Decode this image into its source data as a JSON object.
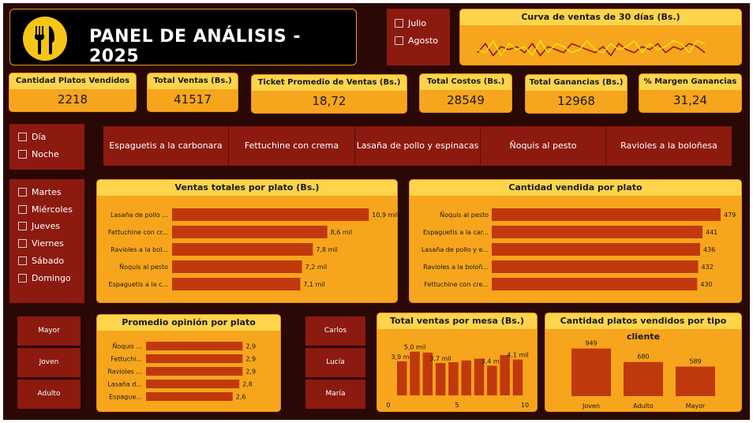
{
  "header": {
    "title": "PANEL DE ANÁLISIS - 2025"
  },
  "month_slicer": {
    "options": [
      "Julio",
      "Agosto"
    ]
  },
  "sales_curve": {
    "title": "Curva de ventas de 30 días (Bs.)",
    "colors": {
      "series_a": "#8c1a0f",
      "series_b": "#f5e216"
    }
  },
  "kpis": [
    {
      "label": "Cantidad Platos Vendidos",
      "value": "2218"
    },
    {
      "label": "Total Ventas (Bs.)",
      "value": "41517"
    },
    {
      "label": "Ticket Promedio de Ventas (Bs.)",
      "value": "18,72"
    },
    {
      "label": "Total Costos (Bs.)",
      "value": "28549"
    },
    {
      "label": "Total Ganancias (Bs.)",
      "value": "12968"
    },
    {
      "label": "% Margen Ganancias",
      "value": "31,24"
    }
  ],
  "shift_slicer": {
    "options": [
      "Día",
      "Noche"
    ]
  },
  "dish_filter": {
    "items": [
      "Espaguetis a la carbonara",
      "Fettuchine con crema",
      "Lasaña de pollo y espinacas",
      "Ñoquis al pesto",
      "Ravioles a la boloñesa"
    ]
  },
  "day_slicer": {
    "options": [
      "Martes",
      "Miércoles",
      "Jueves",
      "Viernes",
      "Sábado",
      "Domingo"
    ]
  },
  "age_buttons": [
    "Mayor",
    "Joven",
    "Adulto"
  ],
  "waiter_buttons": [
    "Carlos",
    "Lucía",
    "María"
  ],
  "colors": {
    "bar": "#c0390c",
    "panel": "#f7a51c",
    "header": "#fdd44c",
    "dark": "#8c1a0f",
    "bg": "#2a0805"
  },
  "chart_data": [
    {
      "id": "sales_by_dish",
      "type": "bar",
      "title": "Ventas totales por plato (Bs.)",
      "orientation": "horizontal",
      "categories": [
        "Lasaña de pollo ...",
        "Fettuchine con cr...",
        "Ravioles a la bol...",
        "Ñoquis al pesto",
        "Espaguetis a la c..."
      ],
      "values": [
        10.9,
        8.6,
        7.8,
        7.2,
        7.1
      ],
      "labels": [
        "10,9 mil",
        "8,6 mil",
        "7,8 mil",
        "7,2 mil",
        "7,1 mil"
      ],
      "unit": "mil Bs.",
      "xlim": [
        0,
        11.5
      ]
    },
    {
      "id": "qty_by_dish",
      "type": "bar",
      "title": "Cantidad vendida por plato",
      "orientation": "horizontal",
      "categories": [
        "Ñoquis al pesto",
        "Espaguetis a la car...",
        "Lasaña de pollo y e...",
        "Ravioles a la boloñ...",
        "Fettuchine con cre..."
      ],
      "values": [
        479,
        441,
        436,
        432,
        430
      ],
      "labels": [
        "479",
        "441",
        "436",
        "432",
        "430"
      ],
      "xlim": [
        0,
        479
      ]
    },
    {
      "id": "rating_by_dish",
      "type": "bar",
      "title": "Promedio opinión por plato",
      "orientation": "horizontal",
      "categories": [
        "Ñoquis ...",
        "Fettuchi...",
        "Ravioles ...",
        "Lasaña d...",
        "Espague..."
      ],
      "values": [
        2.9,
        2.9,
        2.9,
        2.8,
        2.6
      ],
      "labels": [
        "2,9",
        "2,9",
        "2,9",
        "2,8",
        "2,6"
      ],
      "xlim": [
        0,
        3.2
      ]
    },
    {
      "id": "sales_by_table",
      "type": "bar",
      "title": "Total ventas por mesa (Bs.)",
      "x": [
        1,
        2,
        3,
        4,
        5,
        6,
        7,
        8,
        9,
        10
      ],
      "values": [
        3.9,
        5.0,
        4.9,
        3.7,
        3.8,
        4.0,
        4.2,
        3.4,
        4.6,
        4.1
      ],
      "labels": [
        "3,9 mil",
        "5,0 mil",
        "",
        "3,7 mil",
        "",
        "",
        "",
        "3,4 mil",
        "",
        "4,1 mil"
      ],
      "xticks": [
        "0",
        "5",
        "10"
      ],
      "ylim": [
        0,
        6.5
      ]
    },
    {
      "id": "qty_by_client",
      "type": "bar",
      "title": "Cantidad platos vendidos por tipo cliente",
      "categories": [
        "Joven",
        "Adulto",
        "Mayor"
      ],
      "values": [
        949,
        680,
        589
      ],
      "labels": [
        "949",
        "680",
        "589"
      ],
      "ylim": [
        0,
        1100
      ]
    },
    {
      "id": "sales_curve_30d",
      "type": "line",
      "title": "Curva de ventas de 30 días (Bs.)",
      "x": [
        1,
        2,
        3,
        4,
        5,
        6,
        7,
        8,
        9,
        10,
        11,
        12,
        13,
        14,
        15,
        16,
        17,
        18,
        19,
        20,
        21,
        22,
        23,
        24,
        25,
        26,
        27,
        28,
        29,
        30
      ],
      "series": [
        {
          "values": [
            1.3,
            1.6,
            1.2,
            1.5,
            1.4,
            1.5,
            1.3,
            1.6,
            1.2,
            1.5,
            1.4,
            1.3,
            1.6,
            1.5,
            1.4,
            1.3,
            1.5,
            1.2,
            1.6,
            1.4,
            1.3,
            1.5,
            1.4,
            1.6,
            1.3,
            1.5,
            1.4,
            1.6,
            1.5,
            1.3
          ]
        },
        {
          "values": [
            1.4,
            1.3,
            1.7,
            1.2,
            1.6,
            1.4,
            1.5,
            1.2,
            1.7,
            1.3,
            1.6,
            1.5,
            1.3,
            1.4,
            1.7,
            1.4,
            1.3,
            1.6,
            1.4,
            1.5,
            1.7,
            1.3,
            1.6,
            1.4,
            1.5,
            1.7,
            1.6,
            1.3,
            1.7,
            1.6
          ]
        }
      ]
    }
  ]
}
